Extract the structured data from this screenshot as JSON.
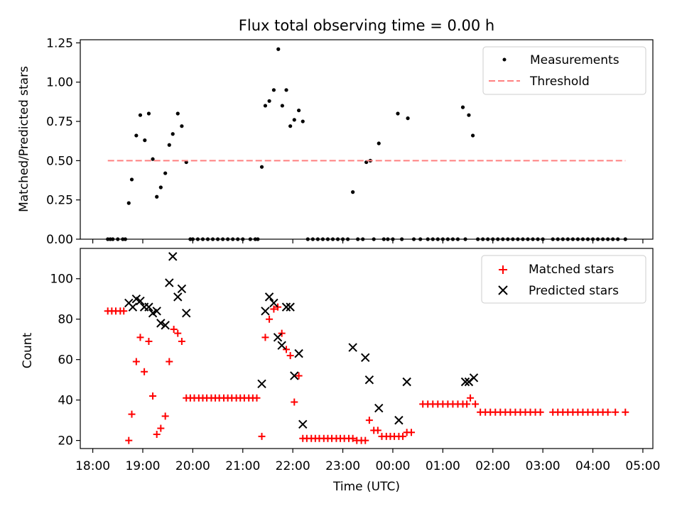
{
  "chart_data": [
    {
      "type": "scatter",
      "title": "Flux total observing time = 0.00 h",
      "xlabel": "",
      "ylabel": "Matched/Predicted stars",
      "xlim": [
        17.75,
        29.2
      ],
      "ylim": [
        0,
        1.27
      ],
      "yticks": [
        0,
        0.25,
        0.5,
        0.75,
        1.0,
        1.25
      ],
      "ytick_labels": [
        "0.00",
        "0.25",
        "0.50",
        "0.75",
        "1.00",
        "1.25"
      ],
      "xticks": [
        18,
        19,
        20,
        21,
        22,
        23,
        24,
        25,
        26,
        27,
        28,
        29
      ],
      "legend_location": "top-right",
      "series": [
        {
          "name": "Measurements",
          "marker": "dot",
          "color": "#000000",
          "x": [
            18.3,
            18.35,
            18.4,
            18.5,
            18.6,
            18.65,
            18.72,
            18.78,
            18.87,
            18.95,
            19.04,
            19.12,
            19.2,
            19.28,
            19.36,
            19.45,
            19.53,
            19.6,
            19.7,
            19.78,
            19.87,
            19.95,
            20.0,
            20.1,
            20.2,
            20.3,
            20.4,
            20.5,
            20.6,
            20.7,
            20.8,
            20.9,
            21.0,
            21.15,
            21.25,
            21.3,
            21.38,
            21.45,
            21.53,
            21.62,
            21.71,
            21.79,
            21.87,
            21.95,
            22.03,
            22.12,
            22.2,
            22.3,
            22.4,
            22.5,
            22.6,
            22.7,
            22.8,
            22.9,
            23.0,
            23.1,
            23.2,
            23.3,
            23.4,
            23.47,
            23.55,
            23.62,
            23.72,
            23.82,
            23.9,
            24.0,
            24.1,
            24.18,
            24.3,
            24.42,
            24.55,
            24.7,
            24.8,
            24.9,
            25.0,
            25.1,
            25.2,
            25.3,
            25.4,
            25.45,
            25.52,
            25.6,
            25.7,
            25.8,
            25.9,
            26.0,
            26.1,
            26.2,
            26.3,
            26.4,
            26.5,
            26.6,
            26.7,
            26.8,
            26.9,
            27.0,
            27.2,
            27.3,
            27.4,
            27.5,
            27.6,
            27.7,
            27.8,
            27.9,
            28.0,
            28.1,
            28.2,
            28.3,
            28.4,
            28.5,
            28.65
          ],
          "y": [
            0,
            0,
            0,
            0,
            0,
            0,
            0.23,
            0.38,
            0.66,
            0.79,
            0.63,
            0.8,
            0.51,
            0.27,
            0.33,
            0.42,
            0.6,
            0.67,
            0.8,
            0.72,
            0.49,
            0,
            0,
            0,
            0,
            0,
            0,
            0,
            0,
            0,
            0,
            0,
            0,
            0,
            0,
            0,
            0.46,
            0.85,
            0.88,
            0.95,
            1.21,
            0.85,
            0.95,
            0.72,
            0.76,
            0.82,
            0.75,
            0,
            0,
            0,
            0,
            0,
            0,
            0,
            0,
            0,
            0.3,
            0,
            0,
            0.49,
            0.5,
            0,
            0.61,
            0,
            0,
            0,
            0.8,
            0,
            0.77,
            0,
            0,
            0,
            0,
            0,
            0,
            0,
            0,
            0,
            0.84,
            0,
            0.79,
            0.66,
            0,
            0,
            0,
            0,
            0,
            0,
            0,
            0,
            0,
            0,
            0,
            0,
            0,
            0,
            0,
            0,
            0,
            0,
            0,
            0,
            0,
            0,
            0,
            0,
            0,
            0,
            0,
            0,
            0
          ]
        },
        {
          "name": "Threshold",
          "marker": "dashed-line",
          "color": "#ff8080",
          "x": [
            18.3,
            28.65
          ],
          "y": [
            0.5,
            0.5
          ]
        }
      ]
    },
    {
      "type": "scatter",
      "title": "",
      "xlabel": "Time (UTC)",
      "ylabel": "Count",
      "xlim": [
        17.75,
        29.2
      ],
      "ylim": [
        16,
        115
      ],
      "yticks": [
        20,
        40,
        60,
        80,
        100
      ],
      "ytick_labels": [
        "20",
        "40",
        "60",
        "80",
        "100"
      ],
      "xticks": [
        18,
        19,
        20,
        21,
        22,
        23,
        24,
        25,
        26,
        27,
        28,
        29
      ],
      "xtick_labels": [
        "18:00",
        "19:00",
        "20:00",
        "21:00",
        "22:00",
        "23:00",
        "00:00",
        "01:00",
        "02:00",
        "03:00",
        "04:00",
        "05:00"
      ],
      "legend_location": "top-right",
      "series": [
        {
          "name": "Matched stars",
          "marker": "plus",
          "color": "#ff0000",
          "x": [
            18.3,
            18.38,
            18.46,
            18.55,
            18.62,
            18.72,
            18.78,
            18.87,
            18.95,
            19.03,
            19.12,
            19.2,
            19.28,
            19.36,
            19.45,
            19.53,
            19.62,
            19.7,
            19.78,
            19.87,
            19.95,
            20.03,
            20.12,
            20.2,
            20.28,
            20.37,
            20.45,
            20.53,
            20.62,
            20.7,
            20.78,
            20.87,
            20.95,
            21.03,
            21.12,
            21.2,
            21.28,
            21.38,
            21.45,
            21.53,
            21.62,
            21.7,
            21.78,
            21.87,
            21.95,
            22.03,
            22.12,
            22.2,
            22.28,
            22.37,
            22.45,
            22.53,
            22.62,
            22.7,
            22.78,
            22.87,
            22.95,
            23.03,
            23.12,
            23.2,
            23.28,
            23.37,
            23.45,
            23.53,
            23.62,
            23.7,
            23.78,
            23.87,
            23.95,
            24.03,
            24.12,
            24.2,
            24.28,
            24.37,
            24.6,
            24.7,
            24.8,
            24.9,
            25.0,
            25.1,
            25.2,
            25.3,
            25.4,
            25.48,
            25.55,
            25.65,
            25.75,
            25.85,
            25.95,
            26.05,
            26.15,
            26.25,
            26.35,
            26.45,
            26.55,
            26.65,
            26.75,
            26.85,
            26.95,
            27.2,
            27.3,
            27.4,
            27.5,
            27.6,
            27.7,
            27.8,
            27.9,
            28.0,
            28.1,
            28.2,
            28.3,
            28.45,
            28.65
          ],
          "y": [
            84,
            84,
            84,
            84,
            84,
            20,
            33,
            59,
            71,
            54,
            69,
            42,
            23,
            26,
            32,
            59,
            75,
            73,
            69,
            41,
            41,
            41,
            41,
            41,
            41,
            41,
            41,
            41,
            41,
            41,
            41,
            41,
            41,
            41,
            41,
            41,
            41,
            22,
            71,
            80,
            85,
            86,
            73,
            65,
            62,
            39,
            52,
            21,
            21,
            21,
            21,
            21,
            21,
            21,
            21,
            21,
            21,
            21,
            21,
            21,
            20,
            20,
            20,
            30,
            25,
            25,
            22,
            22,
            22,
            22,
            22,
            22,
            24,
            24,
            38,
            38,
            38,
            38,
            38,
            38,
            38,
            38,
            38,
            38,
            41,
            38,
            34,
            34,
            34,
            34,
            34,
            34,
            34,
            34,
            34,
            34,
            34,
            34,
            34,
            34,
            34,
            34,
            34,
            34,
            34,
            34,
            34,
            34,
            34,
            34,
            34,
            34,
            34
          ]
        },
        {
          "name": "Predicted stars",
          "marker": "x",
          "color": "#000000",
          "x": [
            18.72,
            18.8,
            18.87,
            18.95,
            19.03,
            19.12,
            19.2,
            19.28,
            19.36,
            19.45,
            19.53,
            19.6,
            19.7,
            19.78,
            19.87,
            21.38,
            21.45,
            21.53,
            21.62,
            21.7,
            21.78,
            21.87,
            21.95,
            22.03,
            22.12,
            22.2,
            23.2,
            23.45,
            23.53,
            23.72,
            24.12,
            24.28,
            25.45,
            25.52,
            25.62
          ],
          "y": [
            88,
            86,
            90,
            89,
            86,
            86,
            83,
            84,
            78,
            77,
            98,
            111,
            91,
            95,
            83,
            48,
            84,
            91,
            88,
            71,
            67,
            86,
            86,
            52,
            63,
            28,
            66,
            61,
            50,
            36,
            30,
            49,
            49,
            49,
            51
          ]
        }
      ]
    }
  ]
}
